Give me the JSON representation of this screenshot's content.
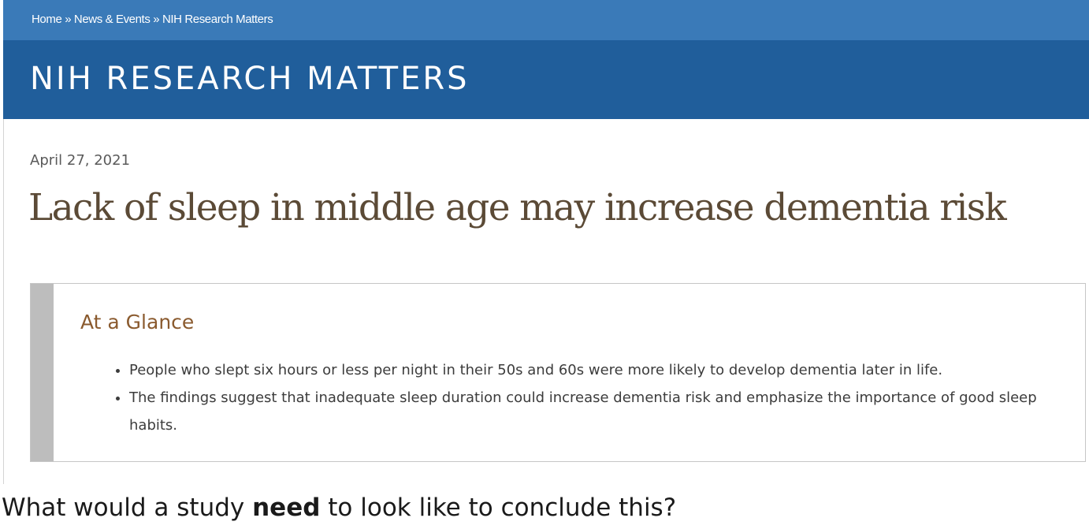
{
  "breadcrumb": {
    "items": [
      "Home",
      "News & Events",
      "NIH Research Matters"
    ],
    "separator": "»"
  },
  "header": {
    "section_title": "NIH RESEARCH MATTERS"
  },
  "article": {
    "date": "April 27, 2021",
    "title": "Lack of sleep in middle age may increase dementia risk",
    "at_a_glance": {
      "heading": "At a Glance",
      "bullets": [
        "People who slept six hours or less per night in their 50s and 60s were more likely to develop dementia later in life.",
        "The findings suggest that inadequate sleep duration could increase dementia risk and emphasize the importance of good sleep habits."
      ]
    }
  },
  "question": {
    "before": "What would a study ",
    "emphasis": "need",
    "after": " to look like to conclude this?"
  },
  "colors": {
    "breadcrumb_bar": "#3a7ab8",
    "title_band": "#205e9b",
    "headline_text": "#5b4a36",
    "glance_heading": "#8a5a2e",
    "glance_sidebar": "#bdbdbd"
  }
}
